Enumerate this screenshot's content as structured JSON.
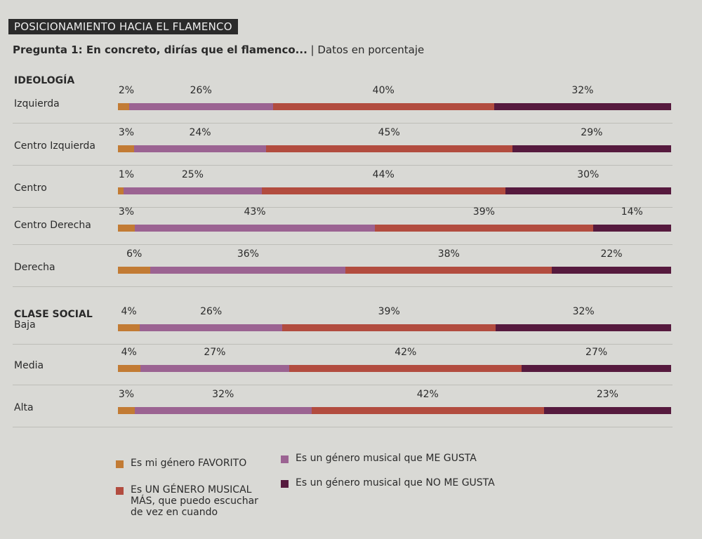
{
  "title": "POSICIONAMIENTO HACIA EL FLAMENCO",
  "subtitle_bold": "Pregunta 1: En concreto, dirías que el flamenco...",
  "subtitle_rest": " | Datos en porcentaje",
  "chart_data": {
    "type": "bar",
    "stacked": true,
    "orientation": "horizontal",
    "unit": "%",
    "series": [
      {
        "name": "Es mi género FAVORITO",
        "color": "#c27b34"
      },
      {
        "name": "Es un género musical que ME GUSTA",
        "color": "#9b6392"
      },
      {
        "name": "Es UN GÉNERO MUSICAL MÁS, que puedo escuchar de vez en cuando",
        "color": "#b24c3f"
      },
      {
        "name": "Es un género musical que NO ME GUSTA",
        "color": "#561a3e"
      }
    ],
    "groups": [
      {
        "title": "IDEOLOGÍA",
        "rows": [
          {
            "label": "Izquierda",
            "values": [
              2,
              26,
              40,
              32
            ]
          },
          {
            "label": "Centro Izquierda",
            "values": [
              3,
              24,
              45,
              29
            ]
          },
          {
            "label": "Centro",
            "values": [
              1,
              25,
              44,
              30
            ]
          },
          {
            "label": "Centro Derecha",
            "values": [
              3,
              43,
              39,
              14
            ]
          },
          {
            "label": "Derecha",
            "values": [
              6,
              36,
              38,
              22
            ]
          }
        ]
      },
      {
        "title": "CLASE SOCIAL",
        "rows": [
          {
            "label": "Baja",
            "values": [
              4,
              26,
              39,
              32
            ]
          },
          {
            "label": "Media",
            "values": [
              4,
              27,
              42,
              27
            ]
          },
          {
            "label": "Alta",
            "values": [
              3,
              32,
              42,
              23
            ]
          }
        ]
      }
    ]
  }
}
